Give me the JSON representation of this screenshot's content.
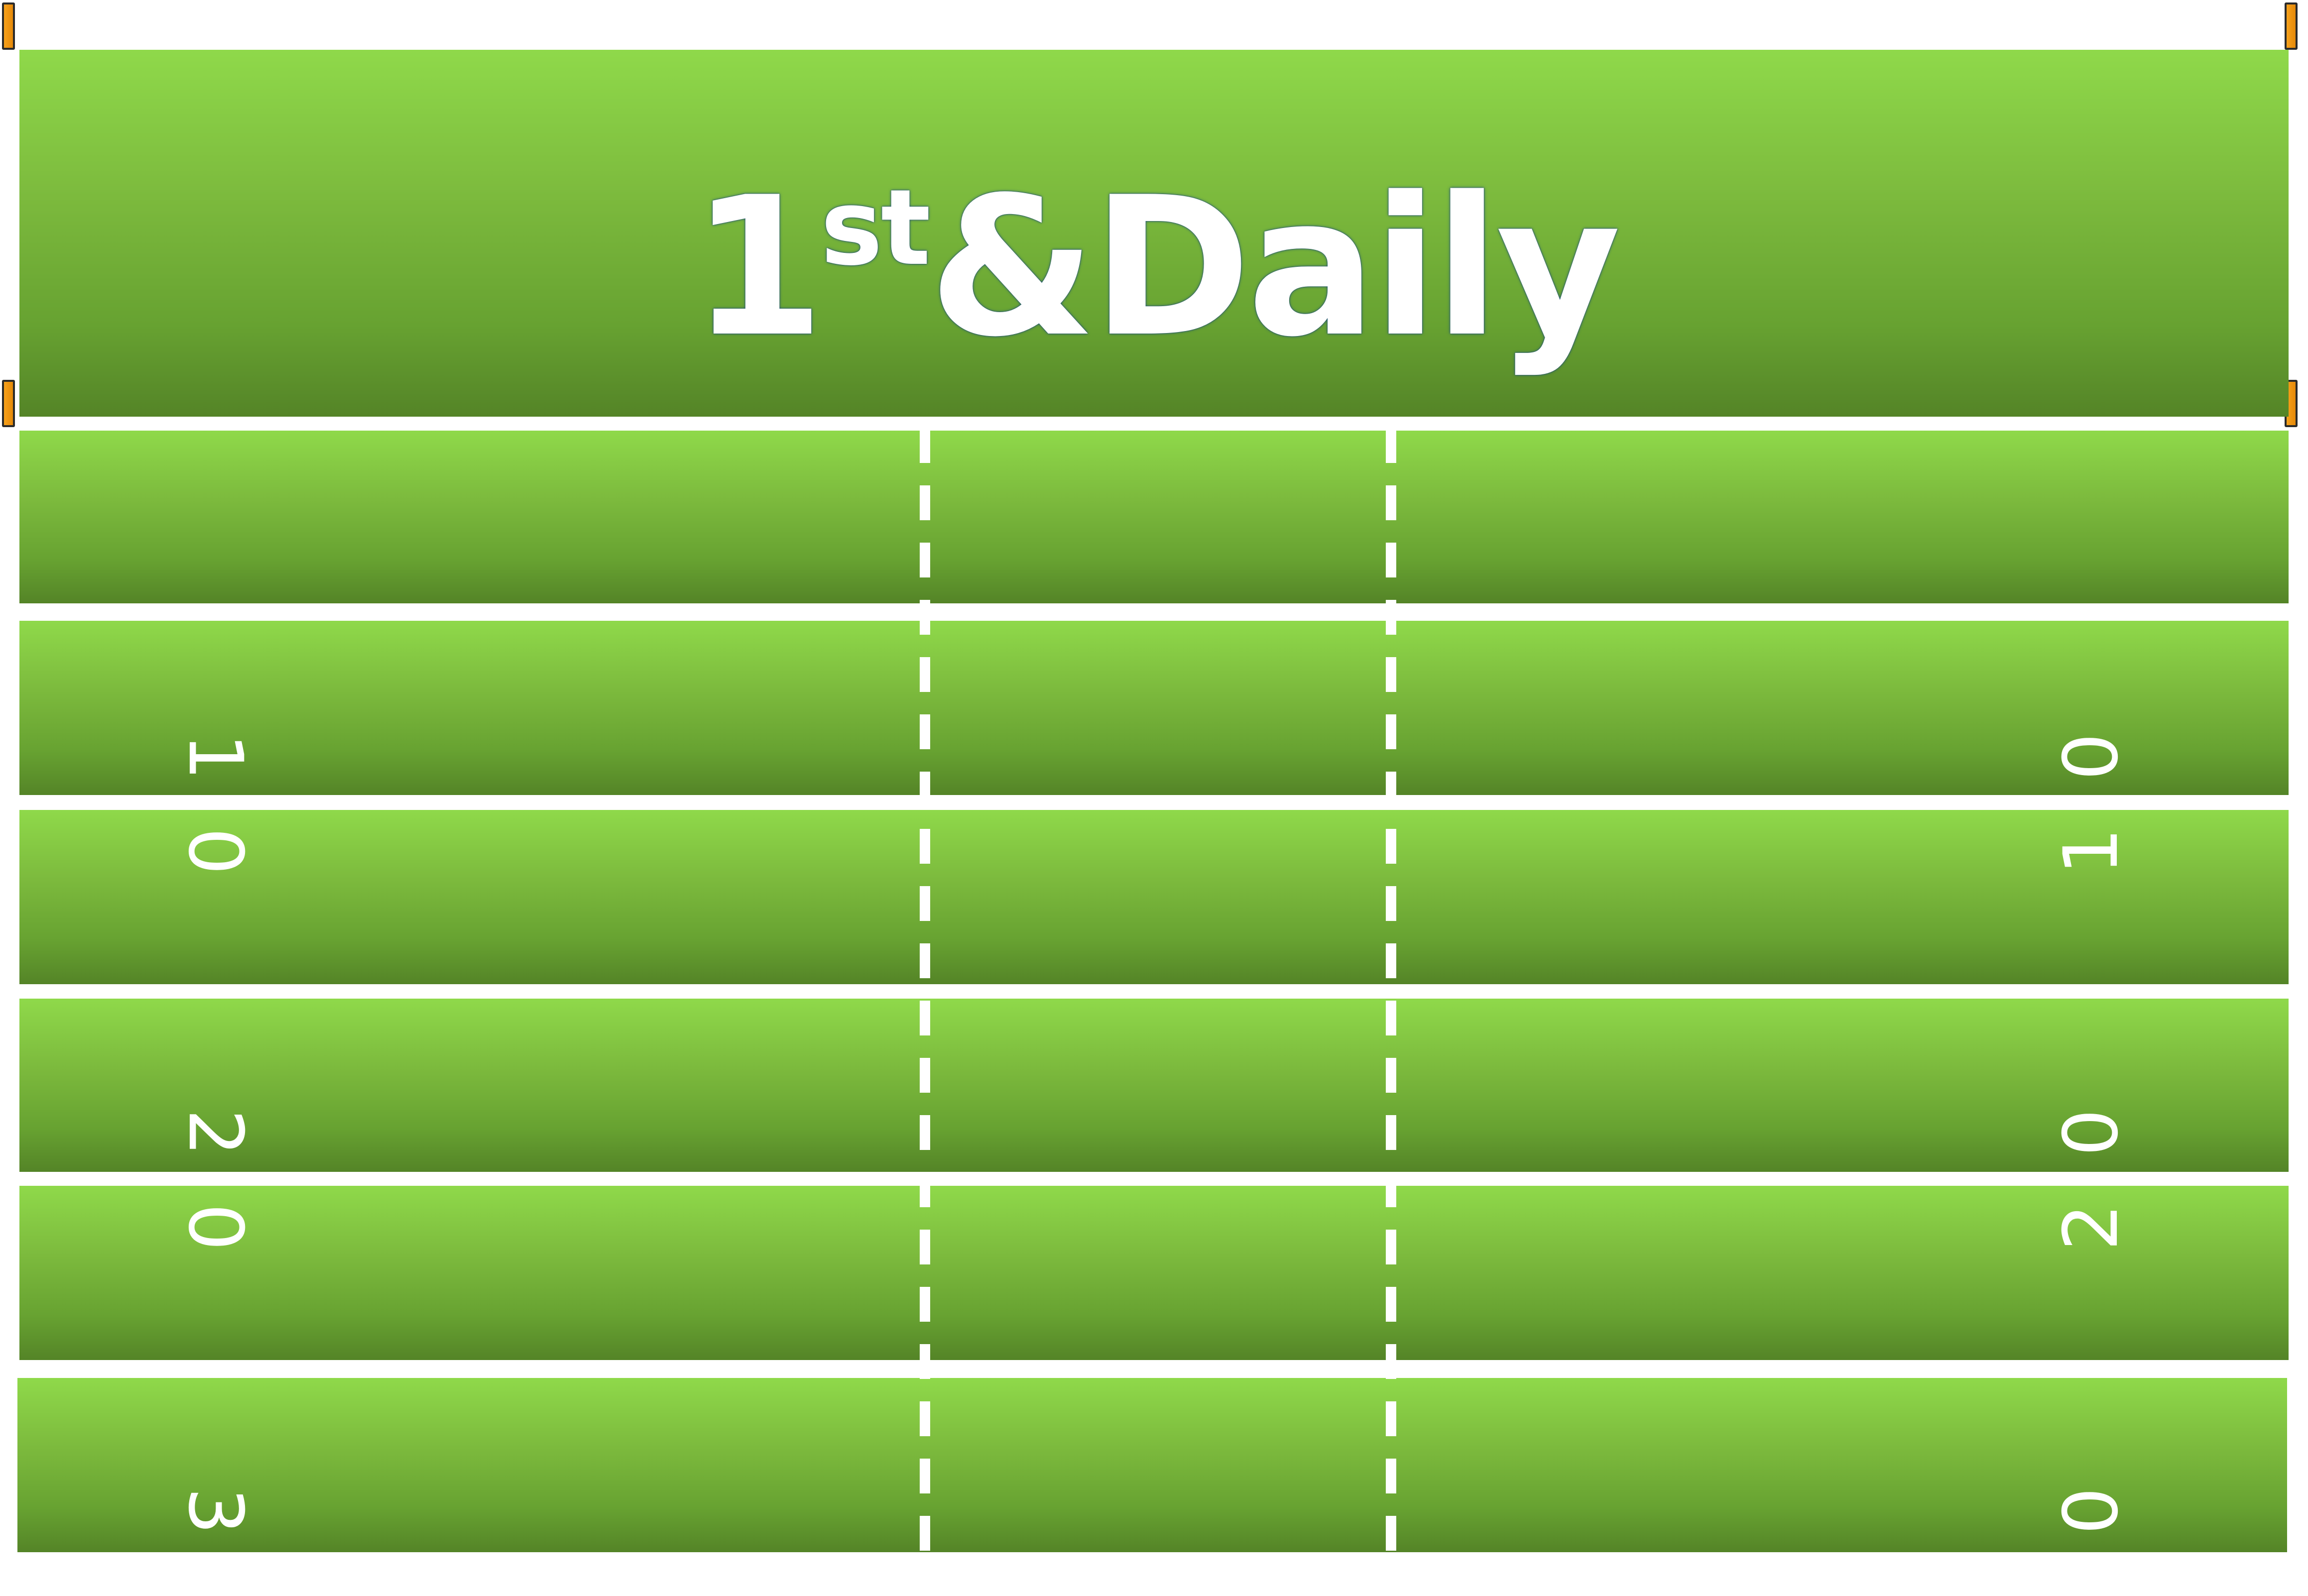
{
  "title": {
    "main_prefix": "1",
    "superscript": "st",
    "main_suffix": "&Daily"
  },
  "yard_numbers": {
    "left": [
      "1",
      "0",
      "2",
      "0",
      "3"
    ],
    "right": [
      "0",
      "1",
      "0",
      "2",
      "0"
    ]
  },
  "colors": {
    "field_light": "#8fd94a",
    "field_dark": "#548427",
    "line_white": "#ffffff",
    "goalpost_orange": "#f7a21b"
  },
  "icons": {
    "goalpost": "goalpost-marker-icon"
  }
}
